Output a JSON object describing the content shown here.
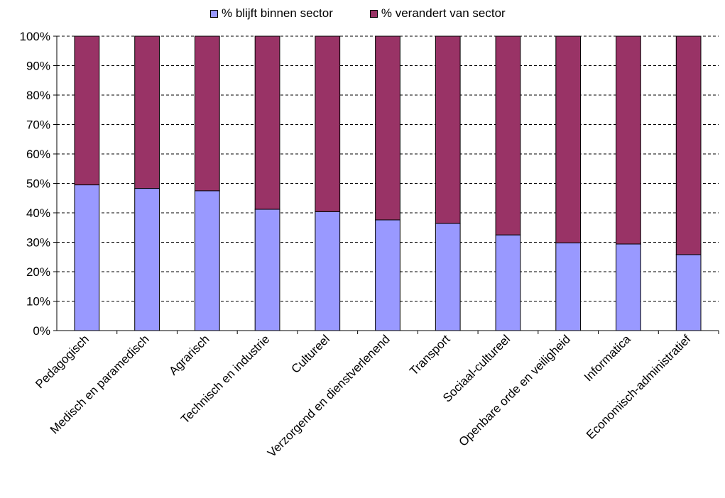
{
  "chart_data": {
    "type": "bar",
    "stacked": true,
    "percent_stacked": true,
    "categories": [
      "Pedagogisch",
      "Medisch en paramedisch",
      "Agrarisch",
      "Technisch en industrie",
      "Cultureel",
      "Verzorgend en dienstverlenend",
      "Transport",
      "Sociaal-cultureel",
      "Openbare orde en veiligheid",
      "Informatica",
      "Economisch-administratief"
    ],
    "series": [
      {
        "name": "% blijft binnen sector",
        "color": "#9999ff",
        "values": [
          49.5,
          48.3,
          47.5,
          41.2,
          40.4,
          37.6,
          36.4,
          32.5,
          29.8,
          29.4,
          25.8
        ]
      },
      {
        "name": "% verandert van sector",
        "color": "#993366",
        "values": [
          50.5,
          51.7,
          52.5,
          58.8,
          59.6,
          62.4,
          63.6,
          67.5,
          70.2,
          70.6,
          74.2
        ]
      }
    ],
    "ylim": [
      0,
      100
    ],
    "yticks": [
      "0%",
      "10%",
      "20%",
      "30%",
      "40%",
      "50%",
      "60%",
      "70%",
      "80%",
      "90%",
      "100%"
    ],
    "grid": "horizontal dashed",
    "legend_position": "top"
  }
}
